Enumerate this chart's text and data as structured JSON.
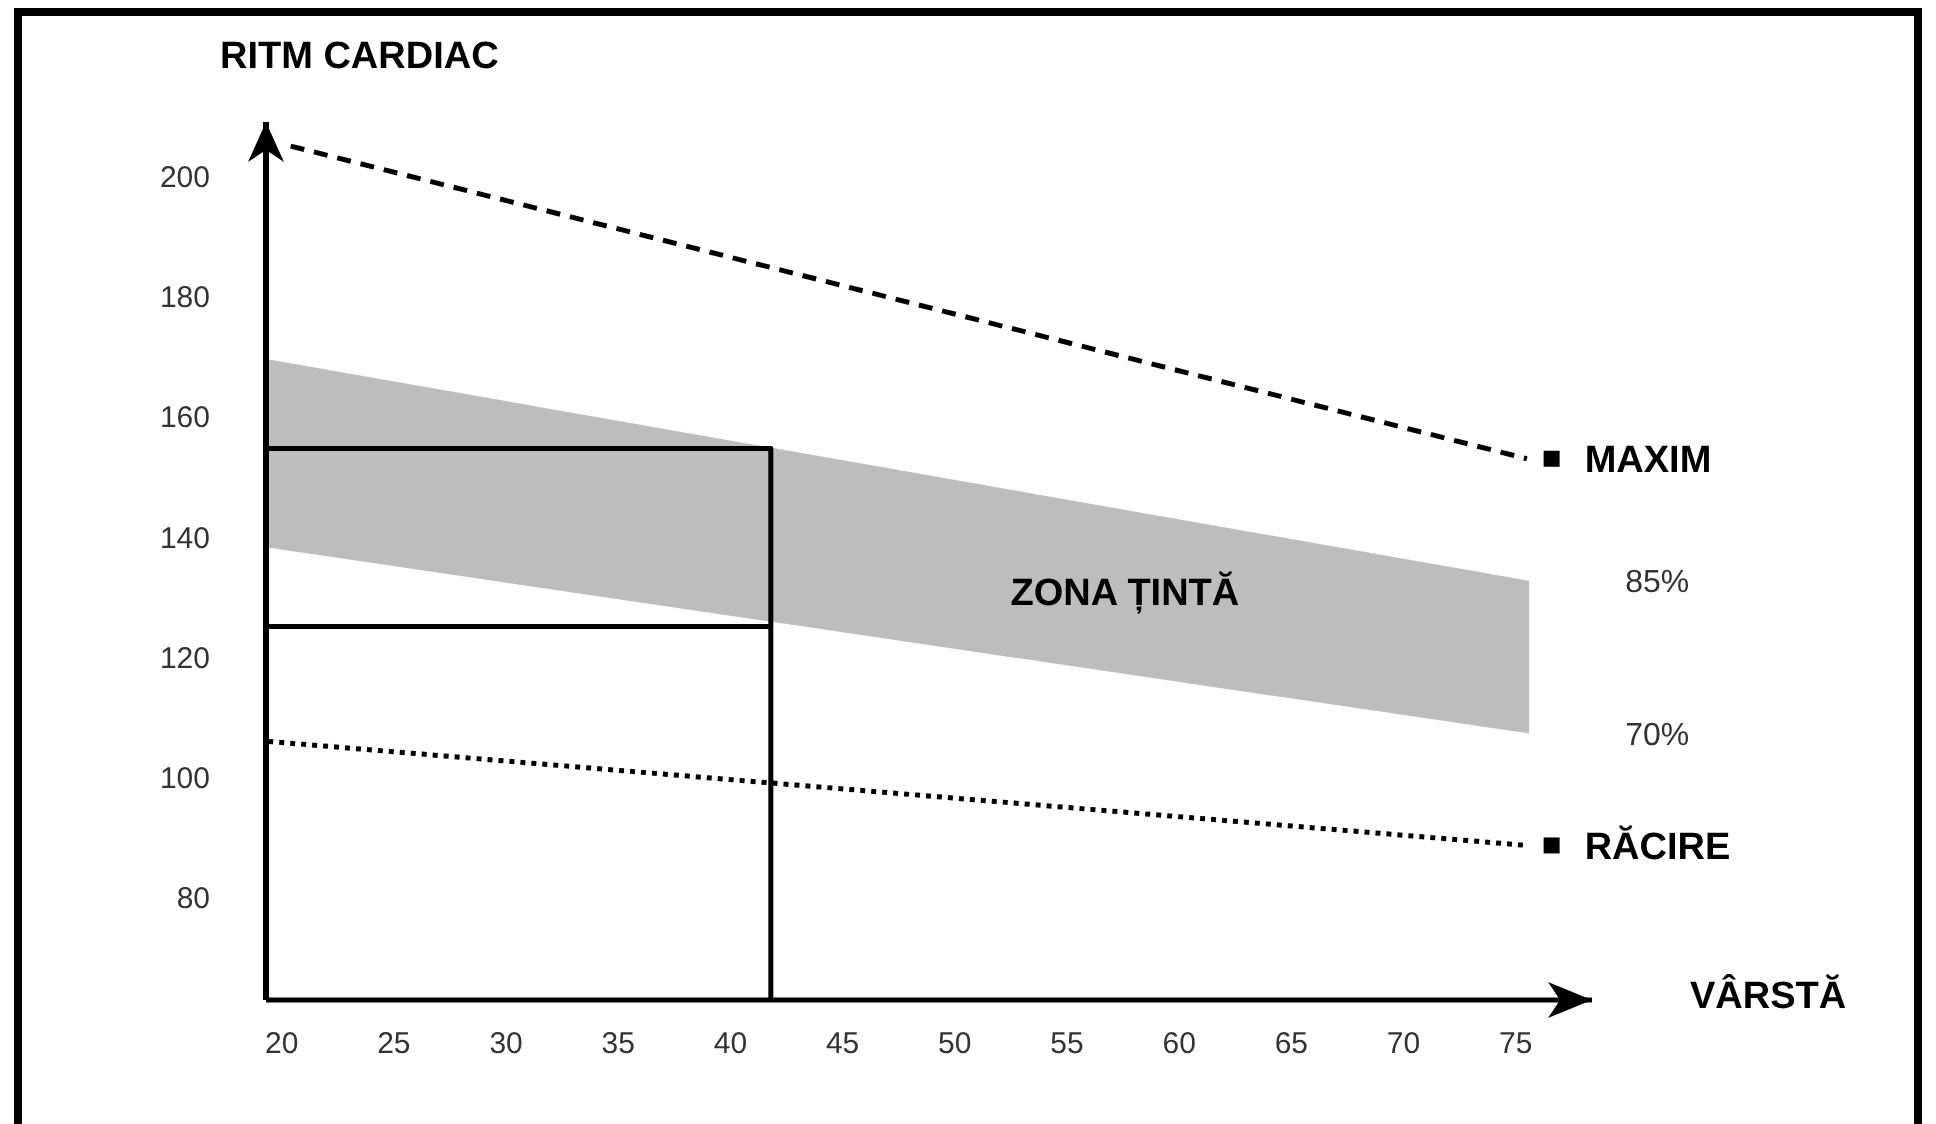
{
  "chart_data": {
    "type": "line",
    "xlabel": "VÂRSTĂ",
    "ylabel": "RITM CARDIAC",
    "xlim": [
      19.3,
      78.4
    ],
    "ylim": [
      63,
      209
    ],
    "xticks": [
      20,
      25,
      30,
      35,
      40,
      45,
      50,
      55,
      60,
      65,
      70,
      75
    ],
    "yticks": [
      80,
      100,
      120,
      140,
      160,
      180,
      200
    ],
    "grid": false,
    "legend": false,
    "series": [
      {
        "type": "line",
        "color": "#bdbdbd",
        "x": [
          19.3,
          75.6
        ],
        "values": [
          null,
          null
        ],
        "lower": [
          138.3,
          107.3
        ],
        "upper": [
          169.6,
          132.7
        ]
      },
      {
        "color": "#000000",
        "line_style": "dashed",
        "marker": "none",
        "x": [
          20.4,
          75.5
        ],
        "values": [
          205,
          153
        ]
      },
      {
        "color": "#000000",
        "line_style": "dotted",
        "marker": "none",
        "x": [
          19.4,
          75.5
        ],
        "values": [
          106,
          88.7
        ]
      },
      {
        "color": "#000000",
        "line_style": "solid",
        "marker": "none",
        "x": [
          19.3,
          41.8,
          41.8
        ],
        "values": [
          154.7,
          154.7,
          63
        ]
      },
      {
        "color": "#000000",
        "line_style": "solid",
        "marker": "none",
        "x": [
          19.3,
          41.8
        ],
        "values": [
          125.1,
          125.1
        ]
      },
      {
        "type": "scatter",
        "name": "MAXIM",
        "color": "#000000",
        "marker": "square",
        "x": [
          76.6
        ],
        "values": [
          153
        ]
      },
      {
        "type": "scatter",
        "name": "RĂCIRE",
        "color": "#000000",
        "marker": "square",
        "x": [
          76.6
        ],
        "values": [
          88.7
        ]
      }
    ],
    "annotations": [
      "85%",
      "70%",
      "ZONA ȚINTĂ"
    ]
  }
}
